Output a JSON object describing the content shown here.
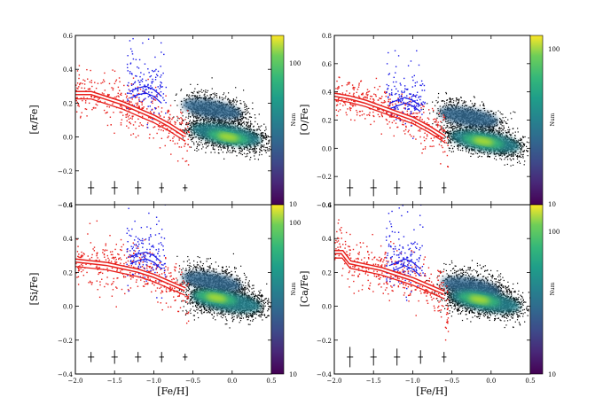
{
  "figure": {
    "description_free": true,
    "colorbar_title": "Num",
    "colors": {
      "metal_poor": "#e8201c",
      "intermediate": "#1a1ae8",
      "main": "#000000",
      "trend_line": "#e8201c"
    }
  },
  "chart_data": [
    {
      "id": "alpha",
      "type": "scatter",
      "ylabel": "[α/Fe]",
      "xlabel": "",
      "xlim": [
        -2.0,
        0.5
      ],
      "ylim": [
        -0.4,
        0.6
      ],
      "xticks": [
        "−2.0",
        "−1.5",
        "−1.0",
        "−0.5",
        "0.0",
        "0.5"
      ],
      "yticks": [
        -0.4,
        -0.2,
        0.0,
        0.2,
        0.4,
        0.6
      ],
      "ytick_labels": [
        "−0.4",
        "−0.2",
        "0.0",
        "0.2",
        "0.4",
        "0.6"
      ],
      "show_xtick_labels": false,
      "colorbar": {
        "label": "Num",
        "ticks": [
          "10",
          "100"
        ]
      },
      "trend": {
        "x": [
          -2.0,
          -1.8,
          -1.6,
          -1.4,
          -1.2,
          -1.0,
          -0.8,
          -0.6
        ],
        "y": [
          0.26,
          0.26,
          0.23,
          0.2,
          0.16,
          0.12,
          0.07,
          0.01
        ]
      },
      "blue_band": {
        "x": [
          -1.3,
          -1.2,
          -1.1,
          -1.0,
          -0.9
        ],
        "y": [
          0.25,
          0.27,
          0.28,
          0.26,
          0.22
        ]
      },
      "error_bars": [
        {
          "x": -1.8,
          "y": -0.3,
          "ex": 0.04,
          "ey": 0.04
        },
        {
          "x": -1.5,
          "y": -0.3,
          "ex": 0.04,
          "ey": 0.04
        },
        {
          "x": -1.2,
          "y": -0.3,
          "ex": 0.04,
          "ey": 0.04
        },
        {
          "x": -0.9,
          "y": -0.3,
          "ex": 0.03,
          "ey": 0.03
        },
        {
          "x": -0.6,
          "y": -0.3,
          "ex": 0.03,
          "ey": 0.02
        }
      ],
      "density": {
        "thick": {
          "x0": -0.55,
          "y0": 0.2,
          "x1": 0.1,
          "y1": 0.12
        },
        "thin": {
          "x0": -0.5,
          "y0": 0.05,
          "x1": 0.35,
          "y1": -0.02
        },
        "peak": {
          "x": -0.05,
          "y": 0.0
        }
      }
    },
    {
      "id": "O",
      "type": "scatter",
      "ylabel": "[O/Fe]",
      "xlabel": "",
      "xlim": [
        -2.0,
        0.5
      ],
      "ylim": [
        -0.4,
        0.8
      ],
      "xticks": [
        "−2.0",
        "−1.5",
        "−1.0",
        "−0.5",
        "0.0",
        "0.5"
      ],
      "yticks": [
        -0.4,
        -0.2,
        0.0,
        0.2,
        0.4,
        0.6,
        0.8
      ],
      "ytick_labels": [
        "−0.4",
        "−0.2",
        "0.0",
        "0.2",
        "0.4",
        "0.6",
        "0.8"
      ],
      "show_xtick_labels": false,
      "colorbar": {
        "label": "Num",
        "ticks": [
          "10",
          "100"
        ]
      },
      "trend": {
        "x": [
          -2.0,
          -1.8,
          -1.6,
          -1.4,
          -1.2,
          -1.0,
          -0.8,
          -0.6
        ],
        "y": [
          0.38,
          0.36,
          0.33,
          0.29,
          0.25,
          0.21,
          0.15,
          0.08
        ]
      },
      "blue_band": {
        "x": [
          -1.3,
          -1.2,
          -1.1,
          -1.0,
          -0.9
        ],
        "y": [
          0.3,
          0.32,
          0.34,
          0.32,
          0.28
        ]
      },
      "error_bars": [
        {
          "x": -1.8,
          "y": -0.28,
          "ex": 0.04,
          "ey": 0.06
        },
        {
          "x": -1.5,
          "y": -0.28,
          "ex": 0.04,
          "ey": 0.06
        },
        {
          "x": -1.2,
          "y": -0.28,
          "ex": 0.04,
          "ey": 0.05
        },
        {
          "x": -0.9,
          "y": -0.28,
          "ex": 0.03,
          "ey": 0.05
        },
        {
          "x": -0.6,
          "y": -0.28,
          "ex": 0.03,
          "ey": 0.04
        }
      ],
      "density": {
        "thick": {
          "x0": -0.6,
          "y0": 0.28,
          "x1": 0.1,
          "y1": 0.15
        },
        "thin": {
          "x0": -0.5,
          "y0": 0.1,
          "x1": 0.35,
          "y1": 0.0
        },
        "peak": {
          "x": -0.1,
          "y": 0.05
        }
      }
    },
    {
      "id": "Si",
      "type": "scatter",
      "ylabel": "[Si/Fe]",
      "xlabel": "[Fe/H]",
      "xlim": [
        -2.0,
        0.5
      ],
      "ylim": [
        -0.4,
        0.6
      ],
      "xticks": [
        "−2.0",
        "−1.5",
        "−1.0",
        "−0.5",
        "0.0",
        "0.5"
      ],
      "yticks": [
        -0.4,
        -0.2,
        0.0,
        0.2,
        0.4,
        0.6
      ],
      "ytick_labels": [
        "−0.4",
        "−0.2",
        "0.0",
        "0.2",
        "0.4",
        "0.6"
      ],
      "show_xtick_labels": true,
      "colorbar": {
        "label": "Num",
        "ticks": [
          "10",
          "100"
        ]
      },
      "trend": {
        "x": [
          -2.0,
          -1.8,
          -1.6,
          -1.4,
          -1.2,
          -1.0,
          -0.8,
          -0.6
        ],
        "y": [
          0.27,
          0.26,
          0.25,
          0.23,
          0.21,
          0.18,
          0.14,
          0.1
        ]
      },
      "blue_band": {
        "x": [
          -1.3,
          -1.2,
          -1.1,
          -1.0,
          -0.9
        ],
        "y": [
          0.27,
          0.29,
          0.3,
          0.28,
          0.24
        ]
      },
      "error_bars": [
        {
          "x": -1.8,
          "y": -0.3,
          "ex": 0.04,
          "ey": 0.03
        },
        {
          "x": -1.5,
          "y": -0.3,
          "ex": 0.04,
          "ey": 0.04
        },
        {
          "x": -1.2,
          "y": -0.3,
          "ex": 0.04,
          "ey": 0.03
        },
        {
          "x": -0.9,
          "y": -0.3,
          "ex": 0.03,
          "ey": 0.03
        },
        {
          "x": -0.6,
          "y": -0.3,
          "ex": 0.03,
          "ey": 0.02
        }
      ],
      "density": {
        "thick": {
          "x0": -0.55,
          "y0": 0.18,
          "x1": 0.1,
          "y1": 0.1
        },
        "thin": {
          "x0": -0.5,
          "y0": 0.06,
          "x1": 0.35,
          "y1": 0.0
        },
        "peak": {
          "x": -0.2,
          "y": 0.05
        }
      }
    },
    {
      "id": "Ca",
      "type": "scatter",
      "ylabel": "[Ca/Fe]",
      "xlabel": "[Fe/H]",
      "xlim": [
        -2.0,
        0.5
      ],
      "ylim": [
        -0.4,
        0.6
      ],
      "xticks": [
        "−2.0",
        "−1.5",
        "−1.0",
        "−0.5",
        "0.0",
        "0.5"
      ],
      "yticks": [
        -0.4,
        -0.2,
        0.0,
        0.2,
        0.4,
        0.6
      ],
      "ytick_labels": [
        "−0.4",
        "−0.2",
        "0.0",
        "0.2",
        "0.4",
        "0.6"
      ],
      "show_xtick_labels": true,
      "colorbar": {
        "label": "Num",
        "ticks": [
          "10",
          "100"
        ]
      },
      "trend": {
        "x": [
          -2.0,
          -1.9,
          -1.8,
          -1.6,
          -1.4,
          -1.2,
          -1.0,
          -0.8,
          -0.6
        ],
        "y": [
          0.32,
          0.32,
          0.26,
          0.24,
          0.22,
          0.19,
          0.16,
          0.12,
          0.08
        ]
      },
      "blue_band": {
        "x": [
          -1.3,
          -1.2,
          -1.1,
          -1.0,
          -0.9
        ],
        "y": [
          0.22,
          0.24,
          0.26,
          0.24,
          0.2
        ]
      },
      "error_bars": [
        {
          "x": -1.8,
          "y": -0.3,
          "ex": 0.04,
          "ey": 0.06
        },
        {
          "x": -1.5,
          "y": -0.3,
          "ex": 0.04,
          "ey": 0.05
        },
        {
          "x": -1.2,
          "y": -0.3,
          "ex": 0.04,
          "ey": 0.05
        },
        {
          "x": -0.9,
          "y": -0.3,
          "ex": 0.03,
          "ey": 0.04
        },
        {
          "x": -0.6,
          "y": -0.3,
          "ex": 0.03,
          "ey": 0.03
        }
      ],
      "density": {
        "thick": {
          "x0": -0.55,
          "y0": 0.14,
          "x1": 0.1,
          "y1": 0.08
        },
        "thin": {
          "x0": -0.5,
          "y0": 0.06,
          "x1": 0.35,
          "y1": 0.0
        },
        "peak": {
          "x": -0.15,
          "y": 0.04
        }
      }
    }
  ]
}
